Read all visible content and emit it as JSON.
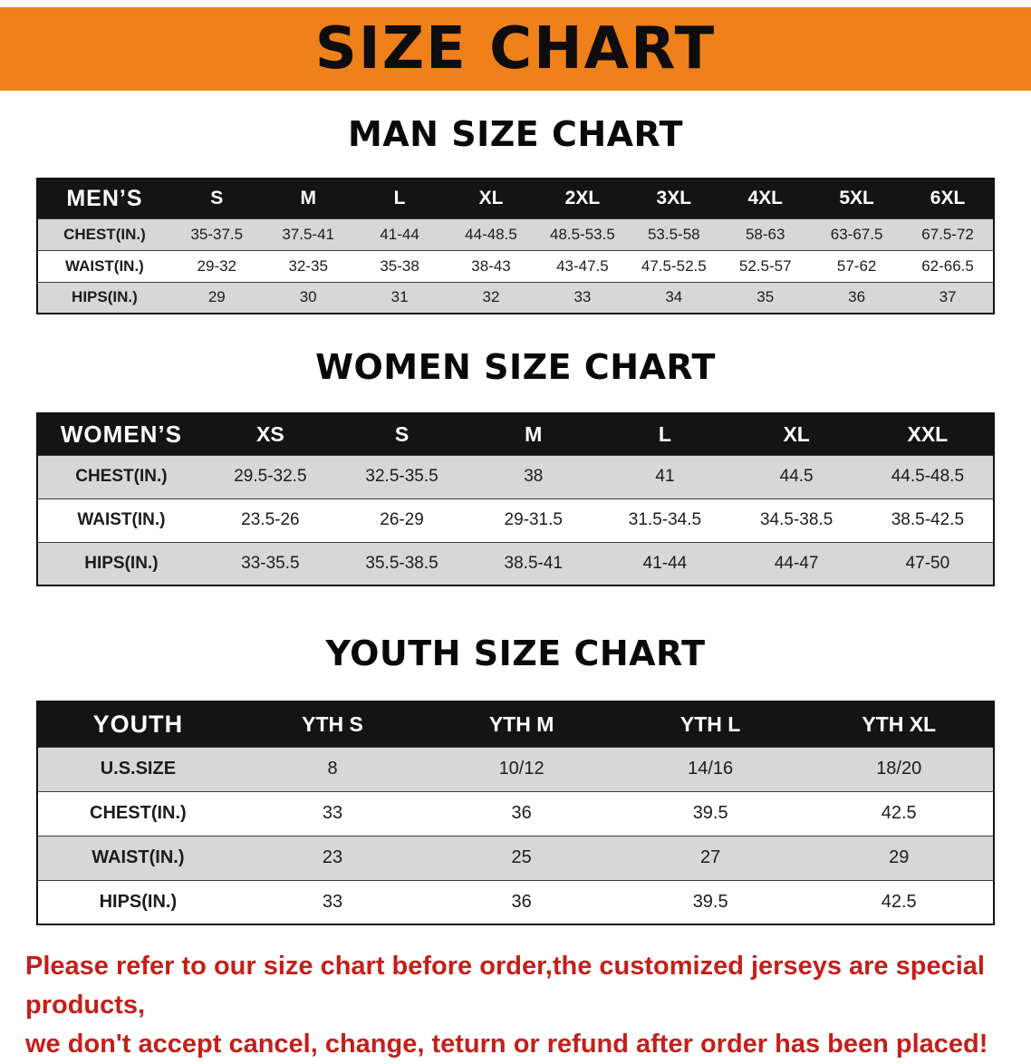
{
  "theme": {
    "banner_bg": "#f08019",
    "header_bg": "#141414",
    "stripe": "#d7d7d7",
    "disclaimer_color": "#c3201a"
  },
  "banner": {
    "title": "SIZE CHART"
  },
  "sections": [
    {
      "id": "men",
      "heading": "MAN SIZE CHART",
      "table": {
        "header": [
          "MEN’S",
          "S",
          "M",
          "L",
          "XL",
          "2XL",
          "3XL",
          "4XL",
          "5XL",
          "6XL"
        ],
        "rows": [
          [
            "CHEST(IN.)",
            "35-37.5",
            "37.5-41",
            "41-44",
            "44-48.5",
            "48.5-53.5",
            "53.5-58",
            "58-63",
            "63-67.5",
            "67.5-72"
          ],
          [
            "WAIST(IN.)",
            "29-32",
            "32-35",
            "35-38",
            "38-43",
            "43-47.5",
            "47.5-52.5",
            "52.5-57",
            "57-62",
            "62-66.5"
          ],
          [
            "HIPS(IN.)",
            "29",
            "30",
            "31",
            "32",
            "33",
            "34",
            "35",
            "36",
            "37"
          ]
        ]
      }
    },
    {
      "id": "women",
      "heading": "WOMEN SIZE CHART",
      "table": {
        "header": [
          "WOMEN’S",
          "XS",
          "S",
          "M",
          "L",
          "XL",
          "XXL"
        ],
        "rows": [
          [
            "CHEST(IN.)",
            "29.5-32.5",
            "32.5-35.5",
            "38",
            "41",
            "44.5",
            "44.5-48.5"
          ],
          [
            "WAIST(IN.)",
            "23.5-26",
            "26-29",
            "29-31.5",
            "31.5-34.5",
            "34.5-38.5",
            "38.5-42.5"
          ],
          [
            "HIPS(IN.)",
            "33-35.5",
            "35.5-38.5",
            "38.5-41",
            "41-44",
            "44-47",
            "47-50"
          ]
        ]
      }
    },
    {
      "id": "youth",
      "heading": "YOUTH SIZE CHART",
      "table": {
        "header": [
          "YOUTH",
          "YTH S",
          "YTH M",
          "YTH L",
          "YTH XL"
        ],
        "rows": [
          [
            "U.S.SIZE",
            "8",
            "10/12",
            "14/16",
            "18/20"
          ],
          [
            "CHEST(IN.)",
            "33",
            "36",
            "39.5",
            "42.5"
          ],
          [
            "WAIST(IN.)",
            "23",
            "25",
            "27",
            "29"
          ],
          [
            "HIPS(IN.)",
            "33",
            "36",
            "39.5",
            "42.5"
          ]
        ]
      }
    }
  ],
  "disclaimer": {
    "lines": [
      "Please refer to our size chart before order,the customized jerseys are special products,",
      "we don't accept cancel, change, teturn or refund after order has been placed!"
    ]
  }
}
